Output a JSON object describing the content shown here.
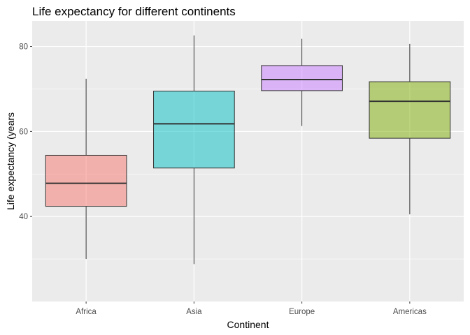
{
  "chart_data": {
    "type": "boxplot",
    "title": "Life expectancy for different continents",
    "xlabel": "Continent",
    "ylabel": "Life expectancy (years",
    "ylim": [
      20,
      86
    ],
    "yticks": [
      40,
      60,
      80
    ],
    "grid": true,
    "legend": "none",
    "categories": [
      "Africa",
      "Asia",
      "Europe",
      "Americas"
    ],
    "series": [
      {
        "category": "Africa",
        "min": 30,
        "q1": 42.4,
        "median": 47.8,
        "q3": 54.4,
        "max": 72.4,
        "color": "#F8766D"
      },
      {
        "category": "Asia",
        "min": 28.8,
        "q1": 51.4,
        "median": 61.8,
        "q3": 69.5,
        "max": 82.6,
        "color": "#00BFC4"
      },
      {
        "category": "Europe",
        "min": 61.3,
        "q1": 69.6,
        "median": 72.2,
        "q3": 75.5,
        "max": 81.8,
        "color": "#C77CFF"
      },
      {
        "category": "Americas",
        "min": 40.5,
        "q1": 58.4,
        "median": 67.1,
        "q3": 71.7,
        "max": 80.6,
        "color": "#7CAE00"
      }
    ]
  },
  "style": {
    "panel_bg": "#EBEBEB",
    "grid_major": "#FFFFFF",
    "box_outline": "#333333",
    "box_opacity": 0.5
  }
}
